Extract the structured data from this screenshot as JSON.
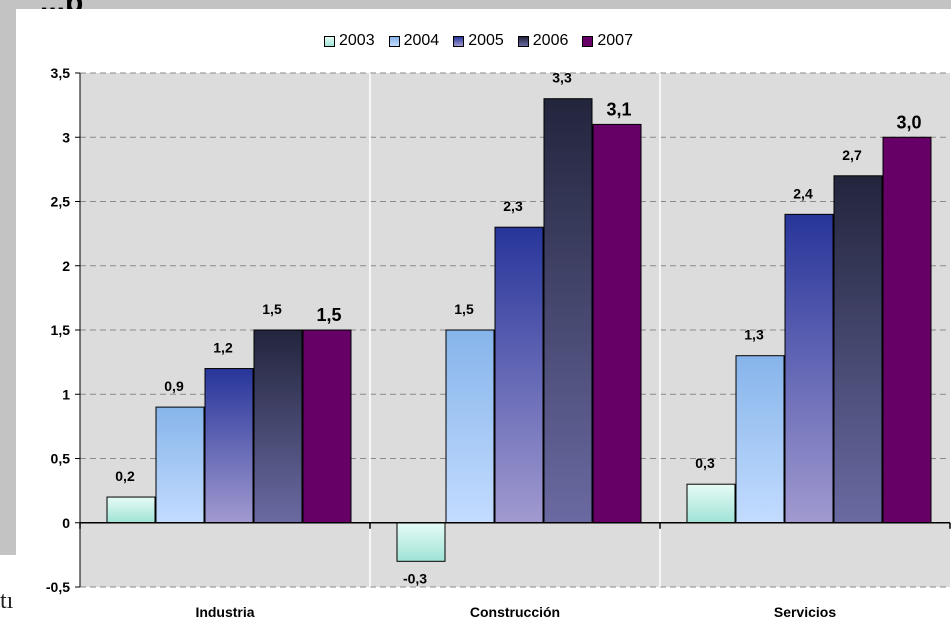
{
  "page": {
    "title_fragment": "...p",
    "body_fragment": "tı"
  },
  "chart_data": {
    "type": "bar",
    "categories": [
      "Industria",
      "Construcción",
      "Servicios"
    ],
    "series": [
      {
        "name": "2003",
        "values": [
          0.2,
          -0.3,
          0.3
        ],
        "color_top": "#e6fbf6",
        "color_bottom": "#9fe3d6"
      },
      {
        "name": "2004",
        "values": [
          0.9,
          1.5,
          1.3
        ],
        "color_top": "#86b4ea",
        "color_bottom": "#c3dcff"
      },
      {
        "name": "2005",
        "values": [
          1.2,
          2.3,
          2.4
        ],
        "color_top": "#27359a",
        "color_bottom": "#a19ad0"
      },
      {
        "name": "2006",
        "values": [
          1.5,
          3.3,
          2.7
        ],
        "color_top": "#22253c",
        "color_bottom": "#6a6aa2"
      },
      {
        "name": "2007",
        "values": [
          1.5,
          3.1,
          3.0
        ],
        "color_top": "#660066",
        "color_bottom": "#660066"
      }
    ],
    "data_labels": [
      [
        "0,2",
        "0,9",
        "1,2",
        "1,5",
        "1,5"
      ],
      [
        "-0,3",
        "1,5",
        "2,3",
        "3,3",
        "3,1"
      ],
      [
        "0,3",
        "1,3",
        "2,4",
        "2,7",
        "3,0"
      ]
    ],
    "y_ticks": [
      {
        "value": -0.5,
        "label": "-0,5"
      },
      {
        "value": 0,
        "label": "0"
      },
      {
        "value": 0.5,
        "label": "0,5"
      },
      {
        "value": 1,
        "label": "1"
      },
      {
        "value": 1.5,
        "label": "1,5"
      },
      {
        "value": 2,
        "label": "2"
      },
      {
        "value": 2.5,
        "label": "2,5"
      },
      {
        "value": 3,
        "label": "3"
      },
      {
        "value": 3.5,
        "label": "3,5"
      }
    ],
    "ylim": [
      -0.5,
      3.5
    ],
    "title": "",
    "xlabel": "",
    "ylabel": "",
    "grid": true,
    "legend_position": "top-center",
    "plot_background": "#dcdcdc"
  }
}
